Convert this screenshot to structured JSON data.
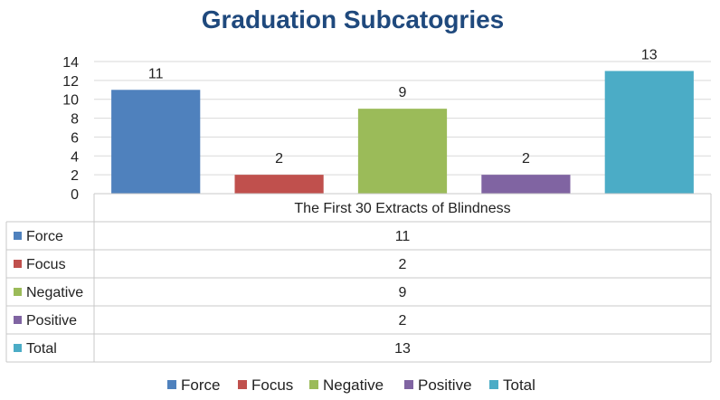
{
  "chart_data": {
    "type": "bar",
    "title": "Graduation Subcatogries",
    "categories": [
      "The First 30 Extracts of Blindness"
    ],
    "series": [
      {
        "name": "Force",
        "values": [
          11
        ],
        "color": "#4f81bd"
      },
      {
        "name": "Focus",
        "values": [
          2
        ],
        "color": "#c0504d"
      },
      {
        "name": "Negative",
        "values": [
          9
        ],
        "color": "#9bbb59"
      },
      {
        "name": "Positive",
        "values": [
          2
        ],
        "color": "#8064a2"
      },
      {
        "name": "Total",
        "values": [
          13
        ],
        "color": "#4bacc6"
      }
    ],
    "ylim": [
      0,
      14
    ],
    "yticks": [
      0,
      2,
      4,
      6,
      8,
      10,
      12,
      14
    ],
    "grid": true,
    "data_table": true,
    "legend_position": "bottom"
  }
}
